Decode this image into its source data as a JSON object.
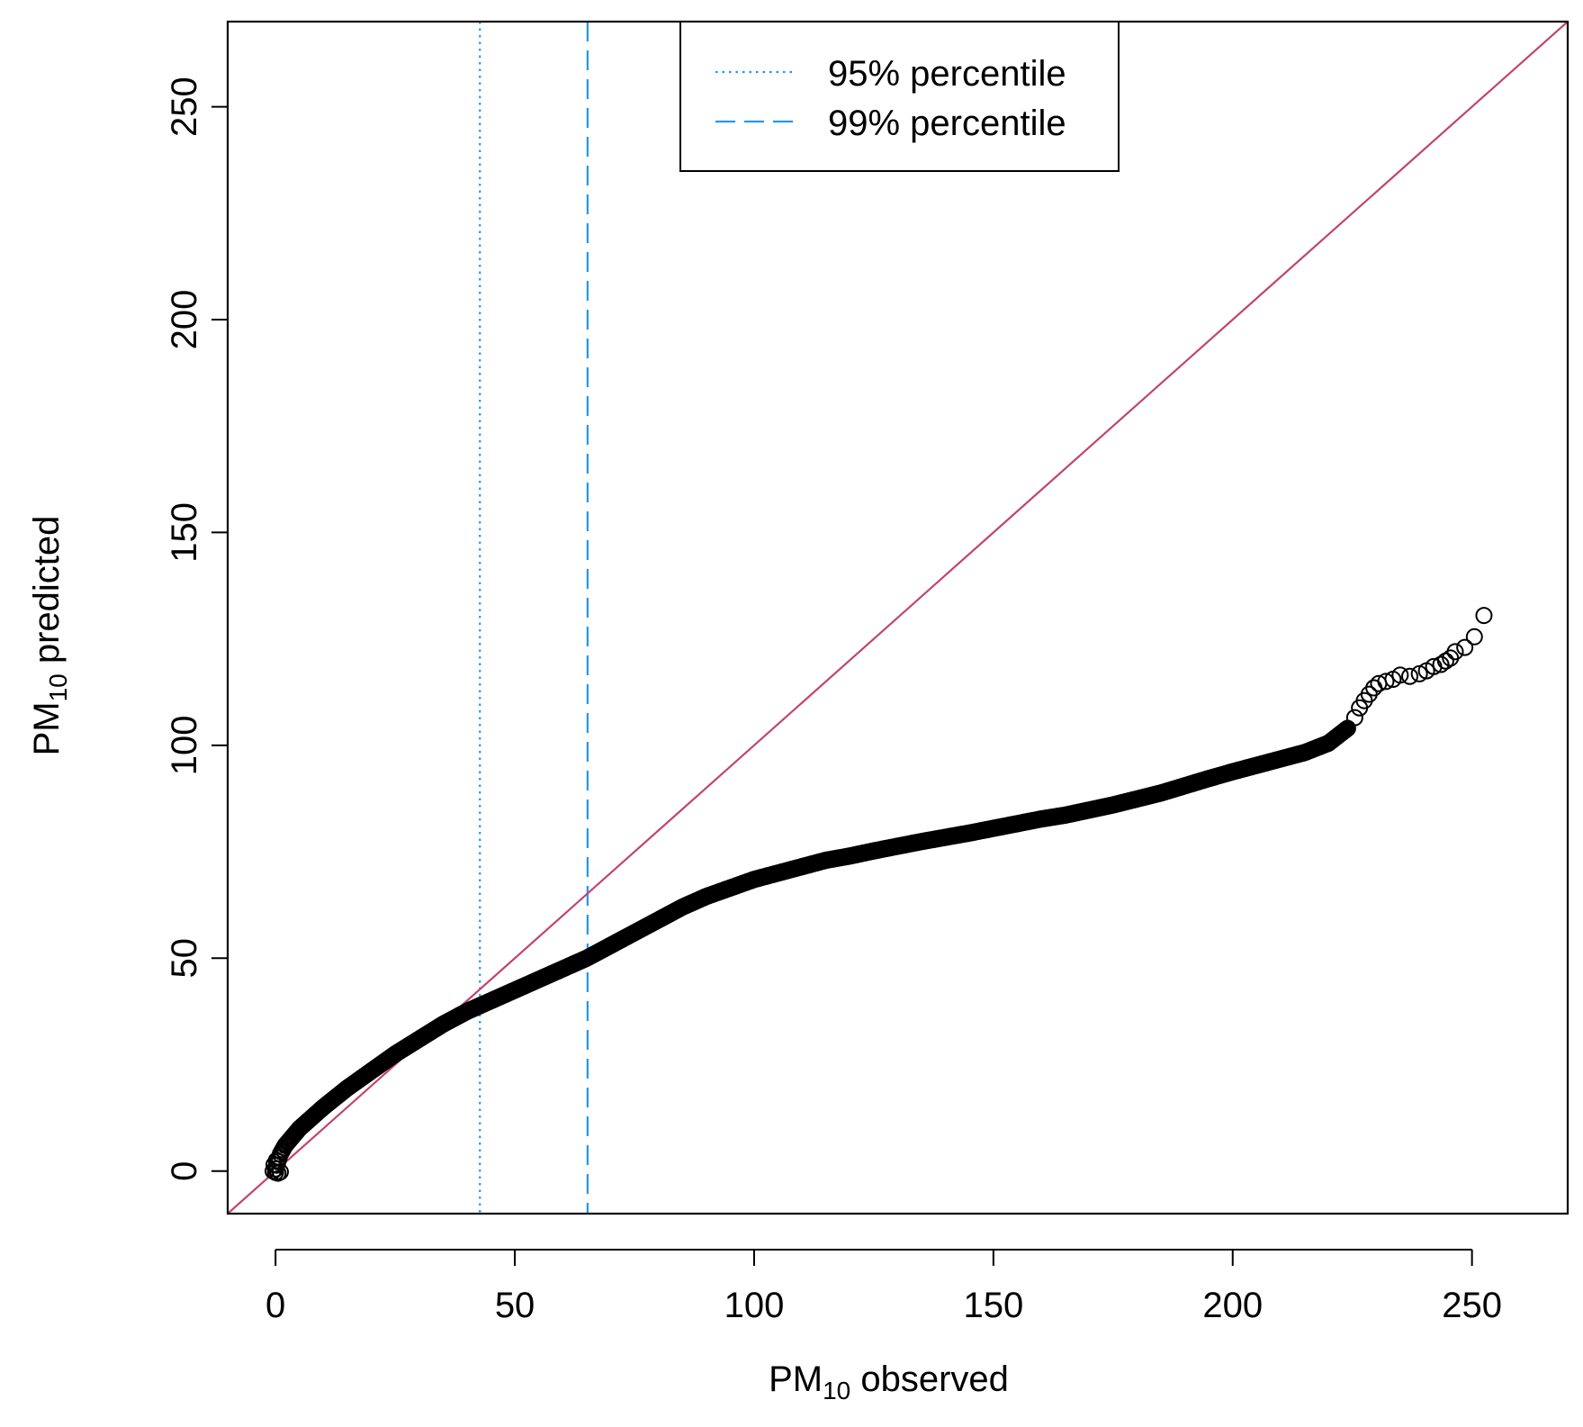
{
  "chart_data": {
    "type": "scatter",
    "title": "",
    "xlabel": {
      "prefix": "PM",
      "subscript": "10",
      "suffix": " observed"
    },
    "ylabel": {
      "prefix": "PM",
      "subscript": "10",
      "suffix": " predicted"
    },
    "xlim": [
      -10,
      270
    ],
    "ylim": [
      -10,
      270
    ],
    "xticks": [
      0,
      50,
      100,
      150,
      200,
      250
    ],
    "yticks": [
      0,
      50,
      100,
      150,
      200,
      250
    ],
    "x_tick_labels": [
      "0",
      "50",
      "100",
      "150",
      "200",
      "250"
    ],
    "y_tick_labels": [
      "0",
      "50",
      "100",
      "150",
      "200",
      "250"
    ],
    "grid": false,
    "legend_position": "top-center",
    "reference_lines": [
      {
        "kind": "vline",
        "x": 42.7,
        "style": "dotted",
        "color": "#2299ee",
        "label": "95% percentile"
      },
      {
        "kind": "vline",
        "x": 65.2,
        "style": "dashed",
        "color": "#2299ee",
        "label": "99% percentile"
      },
      {
        "kind": "abline",
        "intercept": 0,
        "slope": 1,
        "style": "solid",
        "color": "#c0456e",
        "label": ""
      }
    ],
    "series": [
      {
        "name": "quantiles",
        "marker": "open-circle",
        "color": "#000000",
        "curve_points": [
          [
            0,
            0.5
          ],
          [
            1,
            4
          ],
          [
            2,
            6
          ],
          [
            5,
            10
          ],
          [
            10,
            15
          ],
          [
            15,
            19.5
          ],
          [
            20,
            23.5
          ],
          [
            25,
            27.5
          ],
          [
            30,
            31
          ],
          [
            35,
            34.5
          ],
          [
            40,
            37.5
          ],
          [
            45,
            40
          ],
          [
            50,
            42.5
          ],
          [
            55,
            45
          ],
          [
            60,
            47.5
          ],
          [
            65,
            50
          ],
          [
            70,
            53
          ],
          [
            75,
            56
          ],
          [
            80,
            59
          ],
          [
            85,
            62
          ],
          [
            90,
            64.5
          ],
          [
            95,
            66.5
          ],
          [
            100,
            68.5
          ],
          [
            105,
            70
          ],
          [
            110,
            71.5
          ],
          [
            115,
            73
          ],
          [
            120,
            74
          ],
          [
            125,
            75.2
          ],
          [
            130,
            76.3
          ],
          [
            135,
            77.4
          ],
          [
            140,
            78.4
          ],
          [
            145,
            79.4
          ],
          [
            150,
            80.5
          ],
          [
            155,
            81.6
          ],
          [
            160,
            82.7
          ],
          [
            165,
            83.6
          ],
          [
            170,
            84.8
          ],
          [
            175,
            86
          ],
          [
            180,
            87.4
          ],
          [
            185,
            88.8
          ],
          [
            190,
            90.5
          ],
          [
            195,
            92.2
          ],
          [
            200,
            93.8
          ],
          [
            205,
            95.3
          ],
          [
            210,
            96.8
          ],
          [
            215,
            98.3
          ],
          [
            220,
            100.5
          ],
          [
            224,
            104
          ]
        ],
        "tail_points": [
          [
            225.5,
            106.5
          ],
          [
            226.5,
            108.8
          ],
          [
            227.5,
            110.5
          ],
          [
            228.5,
            112
          ],
          [
            229.5,
            113.5
          ],
          [
            230.5,
            114.5
          ],
          [
            232,
            115
          ],
          [
            233.5,
            115.5
          ],
          [
            235,
            116.5
          ],
          [
            237,
            116.2
          ],
          [
            239,
            116.8
          ],
          [
            240.5,
            117.5
          ],
          [
            242,
            118.5
          ],
          [
            243.5,
            119
          ],
          [
            244.5,
            119.8
          ],
          [
            245.5,
            120.5
          ],
          [
            246.5,
            122
          ],
          [
            248.5,
            123
          ],
          [
            250.5,
            125.5
          ],
          [
            252.5,
            130.5
          ]
        ]
      }
    ]
  }
}
